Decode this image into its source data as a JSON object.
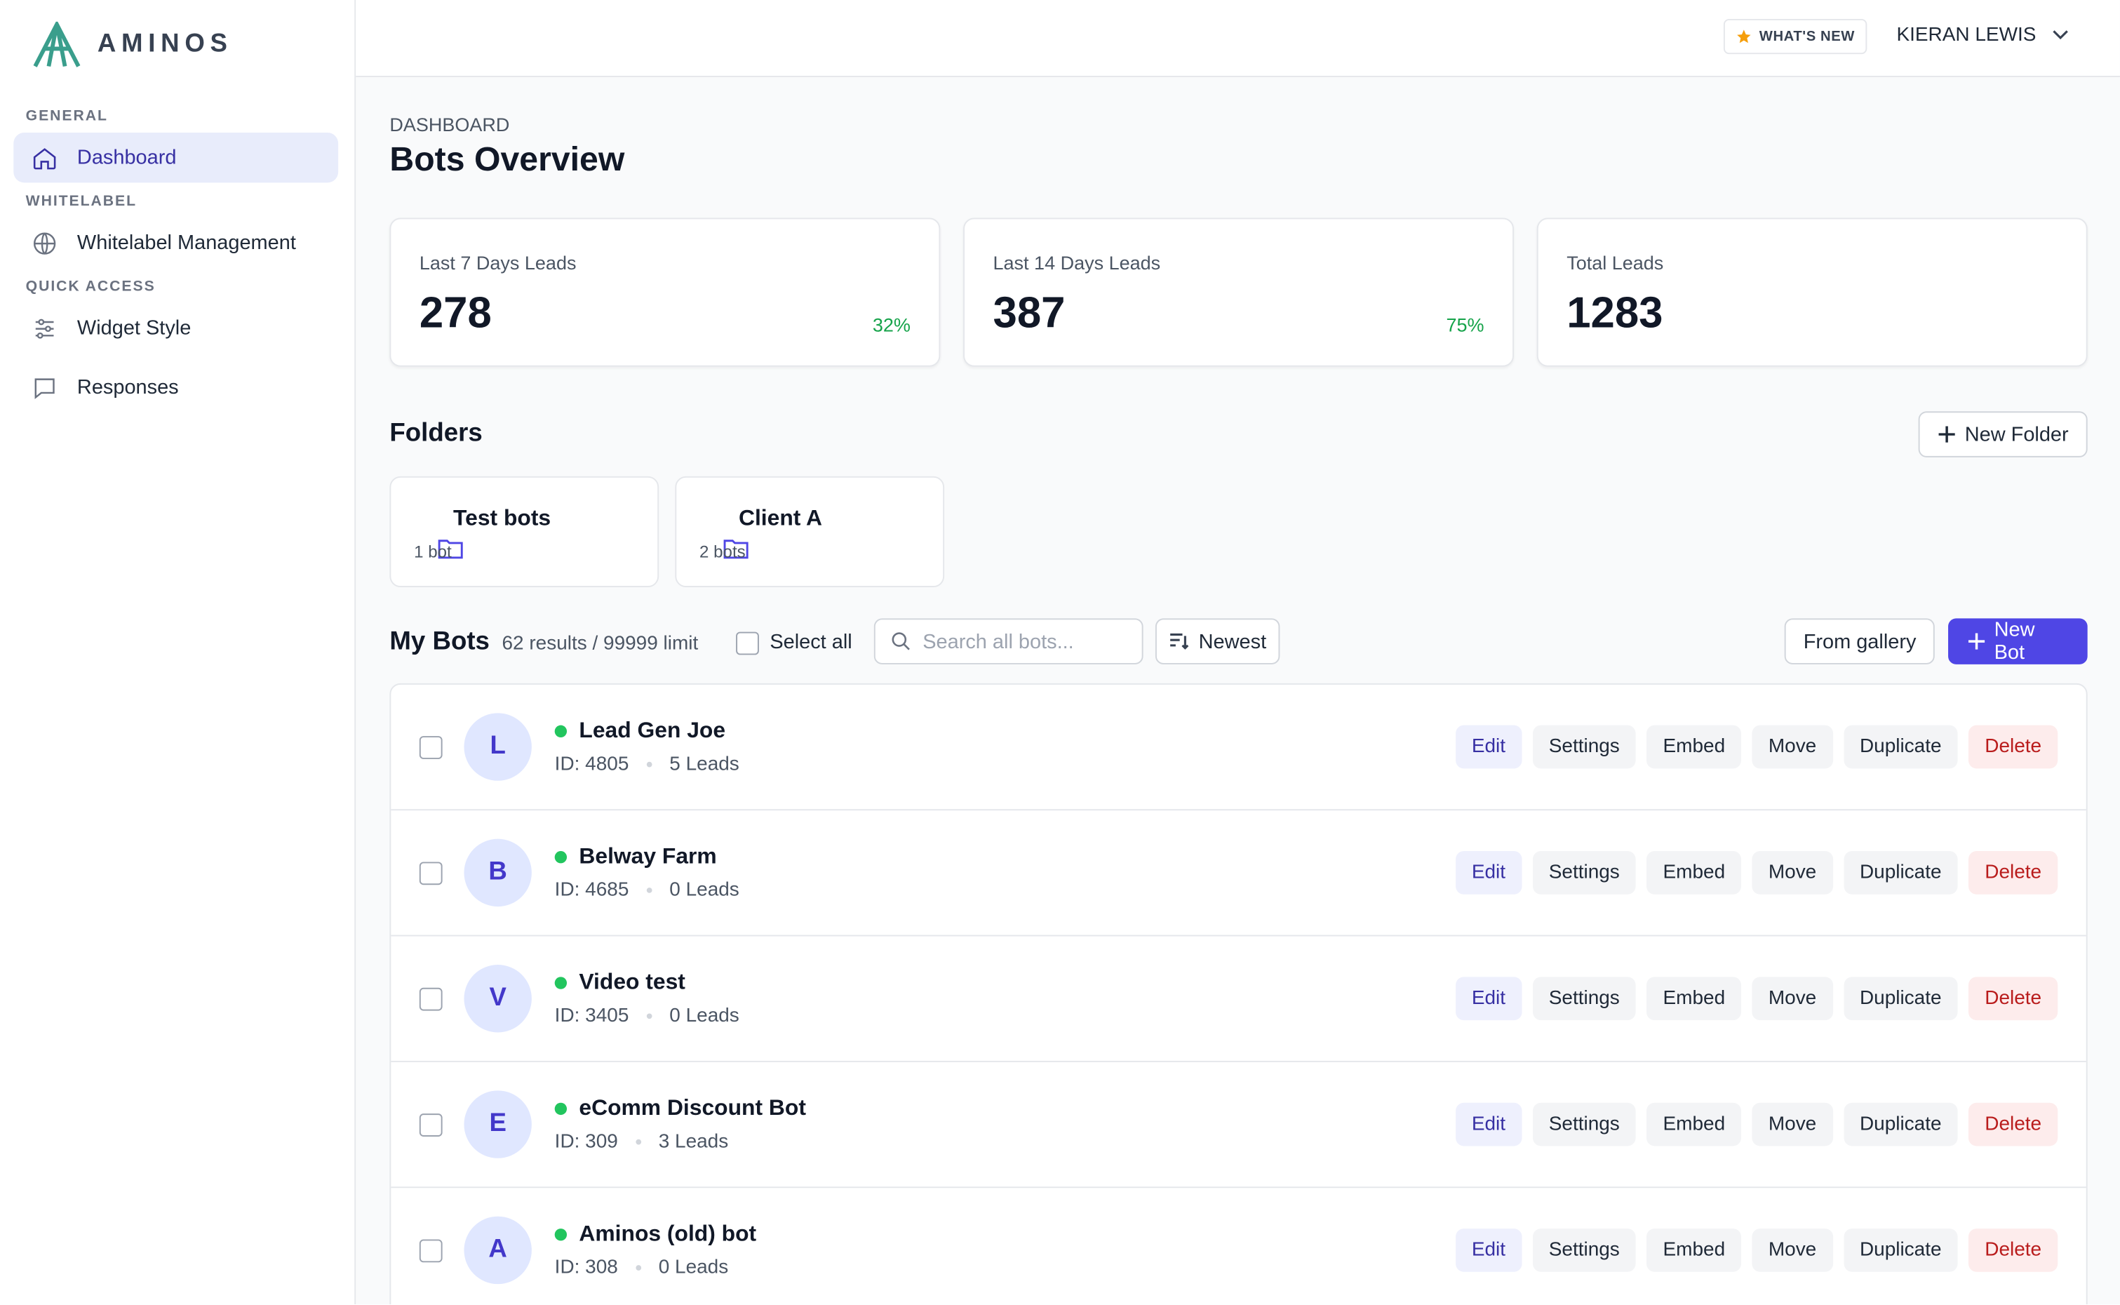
{
  "sidebar": {
    "logo": "AMINOS",
    "sections": [
      {
        "title": "GENERAL",
        "items": [
          "Dashboard"
        ]
      },
      {
        "title": "WHITELABEL",
        "items": [
          "Whitelabel Management"
        ]
      },
      {
        "title": "QUICK ACCESS",
        "items": [
          "Widget Style",
          "Responses"
        ]
      }
    ]
  },
  "topbar": {
    "whats_new": "WHAT'S NEW",
    "user": "KIERAN LEWIS"
  },
  "main": {
    "breadcrumb": "DASHBOARD",
    "title": "Bots Overview",
    "stats": [
      {
        "label": "Last 7 Days Leads",
        "value": "278",
        "change": "32%"
      },
      {
        "label": "Last 14 Days Leads",
        "value": "387",
        "change": "75%"
      },
      {
        "label": "Total Leads",
        "value": "1283"
      }
    ],
    "folders": {
      "title": "Folders",
      "new_button": "New Folder",
      "items": [
        {
          "name": "Test bots",
          "count": "1 bot"
        },
        {
          "name": "Client A",
          "count": "2 bots"
        }
      ]
    },
    "bots": {
      "title": "My Bots",
      "results": "62 results / 99999 limit",
      "select_all": "Select all",
      "search_placeholder": "Search all bots...",
      "sort": "Newest",
      "gallery_button": "From gallery",
      "new_button": "New Bot",
      "actions": [
        "Edit",
        "Settings",
        "Embed",
        "Move",
        "Duplicate",
        "Delete"
      ],
      "items": [
        {
          "avatar": "L",
          "name": "Lead Gen Joe",
          "id": "ID: 4805",
          "leads": "5 Leads"
        },
        {
          "avatar": "B",
          "name": "Belway Farm",
          "id": "ID: 4685",
          "leads": "0 Leads"
        },
        {
          "avatar": "V",
          "name": "Video test",
          "id": "ID: 3405",
          "leads": "0 Leads"
        },
        {
          "avatar": "E",
          "name": "eComm Discount Bot",
          "id": "ID: 309",
          "leads": "3 Leads"
        },
        {
          "avatar": "A",
          "name": "Aminos (old) bot",
          "id": "ID: 308",
          "leads": "0 Leads"
        }
      ]
    }
  }
}
